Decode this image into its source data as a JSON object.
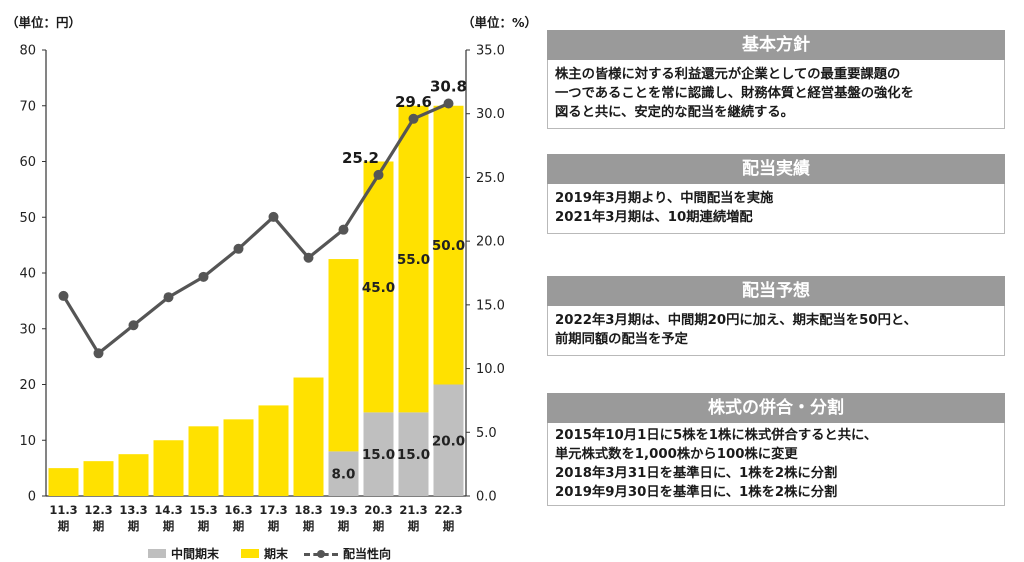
{
  "chart_data": {
    "type": "bar",
    "left_unit": "（単位：円）",
    "right_unit": "（単位：%）",
    "categories": [
      "11.3\n期",
      "12.3\n期",
      "13.3\n期",
      "14.3\n期",
      "15.3\n期",
      "16.3\n期",
      "17.3\n期",
      "18.3\n期",
      "19.3\n期",
      "20.3\n期",
      "21.3\n期",
      "22.3\n期"
    ],
    "series": [
      {
        "name": "中間期末",
        "color": "#bfbfbf",
        "values": [
          0,
          0,
          0,
          0,
          0,
          0,
          0,
          0,
          8.0,
          15.0,
          15.0,
          20.0
        ]
      },
      {
        "name": "期末",
        "color": "#ffe100",
        "values": [
          5.0,
          6.25,
          7.5,
          10.0,
          12.5,
          13.75,
          16.25,
          21.25,
          34.5,
          45.0,
          55.0,
          50.0
        ]
      }
    ],
    "line_series": {
      "name": "配当性向",
      "color": "#555555",
      "values": [
        15.7,
        11.2,
        13.4,
        15.6,
        17.2,
        19.4,
        21.9,
        18.7,
        20.9,
        25.2,
        29.6,
        30.8
      ]
    },
    "bar_labels": [
      {
        "index": 8,
        "series": 0,
        "text": "8.0"
      },
      {
        "index": 9,
        "series": 0,
        "text": "15.0"
      },
      {
        "index": 10,
        "series": 0,
        "text": "15.0"
      },
      {
        "index": 11,
        "series": 0,
        "text": "20.0"
      },
      {
        "index": 9,
        "series": 1,
        "text": "45.0"
      },
      {
        "index": 10,
        "series": 1,
        "text": "55.0"
      },
      {
        "index": 11,
        "series": 1,
        "text": "50.0"
      }
    ],
    "line_labels": [
      {
        "index": 9,
        "text": "25.2"
      },
      {
        "index": 10,
        "text": "29.6"
      },
      {
        "index": 11,
        "text": "30.8"
      }
    ],
    "ylim_left": [
      0,
      80
    ],
    "yticks_left": [
      "0",
      "10",
      "20",
      "30",
      "40",
      "50",
      "60",
      "70",
      "80"
    ],
    "ylim_right": [
      0,
      35
    ],
    "yticks_right": [
      "0.0",
      "5.0",
      "10.0",
      "15.0",
      "20.0",
      "25.0",
      "30.0",
      "35.0"
    ],
    "grid": false,
    "legend_position": "bottom"
  },
  "legend": {
    "interim": "中間期末",
    "yearend": "期末",
    "payout": "配当性向"
  },
  "panels": [
    {
      "title": "基本方針",
      "lines": [
        "株主の皆様に対する利益還元が企業としての最重要課題の",
        "一つであることを常に認識し、財務体質と経営基盤の強化を",
        "図ると共に、安定的な配当を継続する。"
      ]
    },
    {
      "title": "配当実績",
      "lines": [
        "2019年3月期より、中間配当を実施",
        "2021年3月期は、10期連続増配"
      ]
    },
    {
      "title": "配当予想",
      "lines": [
        "2022年3月期は、中間期20円に加え、期末配当を50円と、",
        "前期同額の配当を予定"
      ]
    },
    {
      "title": "株式の併合・分割",
      "lines": [
        "2015年10月1日に5株を1株に株式併合すると共に、",
        "単元株式数を1,000株から100株に変更",
        "2018年3月31日を基準日に、1株を2株に分割",
        "2019年9月30日を基準日に、1株を2株に分割"
      ]
    }
  ]
}
